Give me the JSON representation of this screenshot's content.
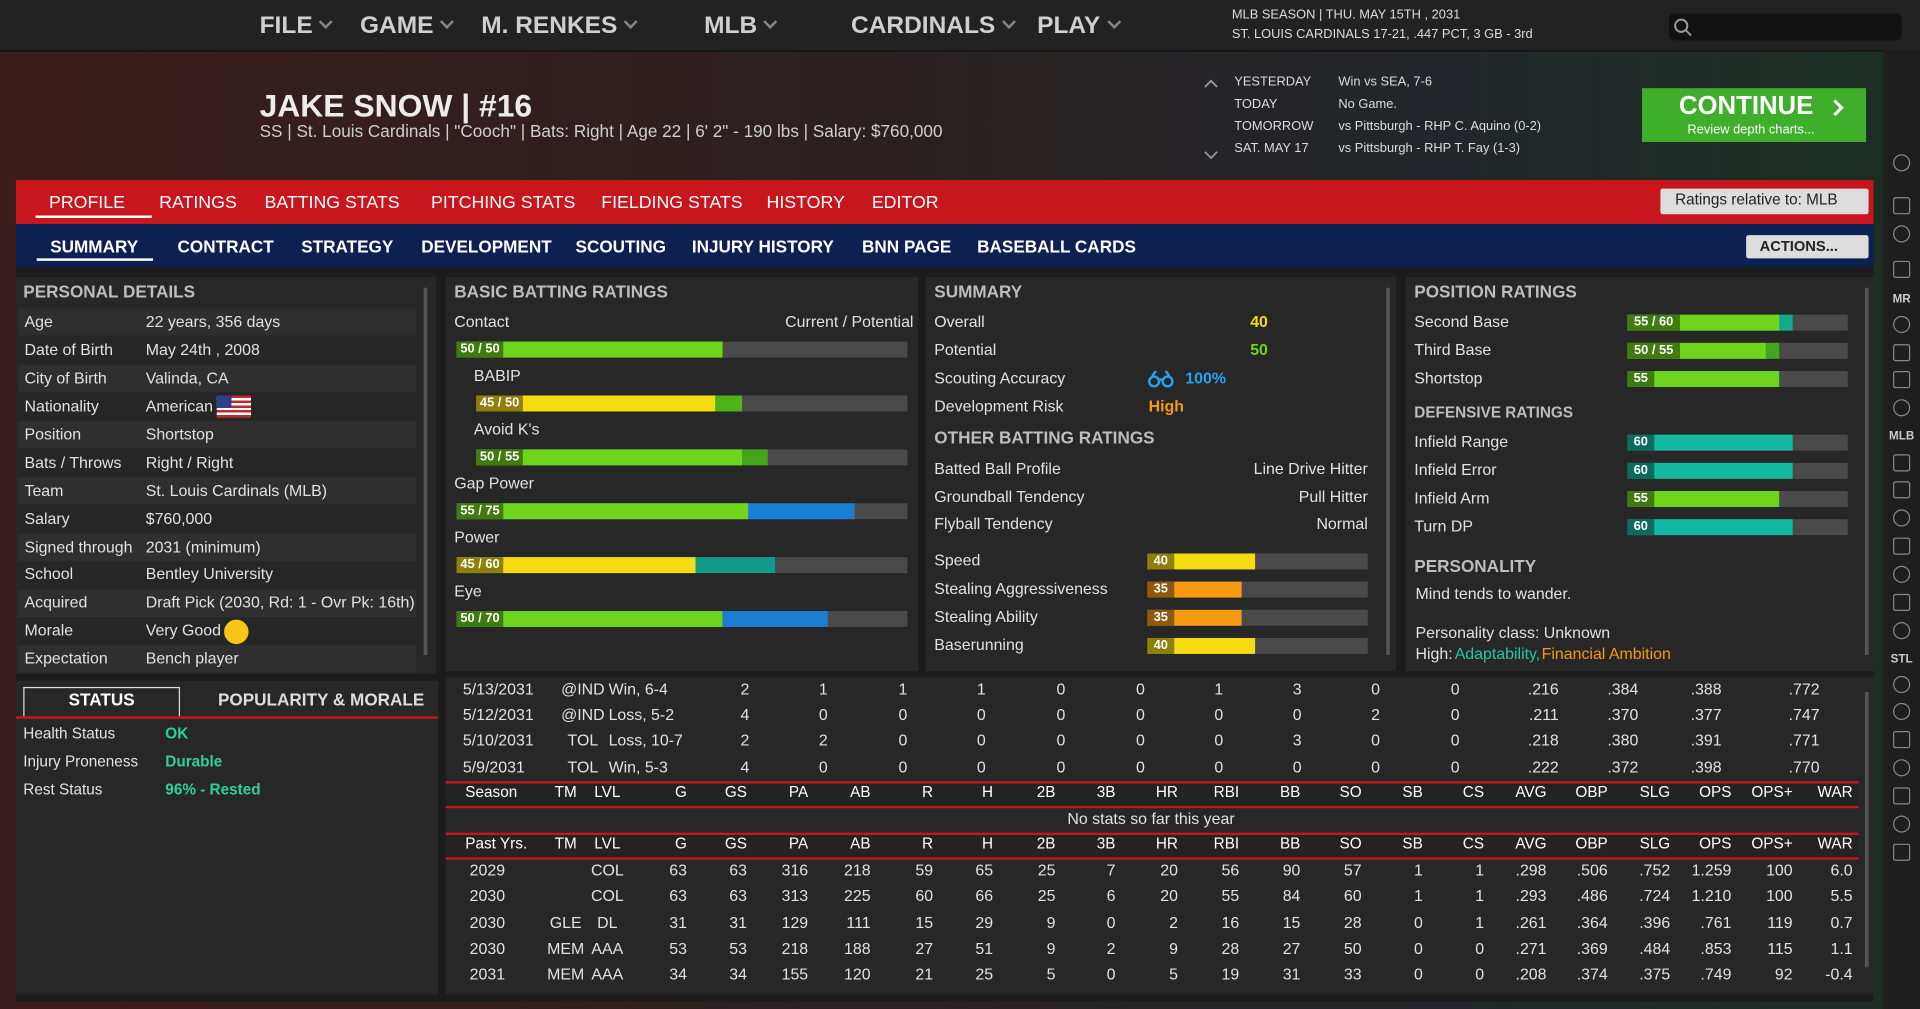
{
  "nav": {
    "menu": [
      "FILE",
      "GAME",
      "M. RENKES",
      "MLB",
      "CARDINALS",
      "PLAY"
    ],
    "season": "MLB SEASON  |  THU. MAY 15TH , 2031",
    "team_record": "ST. LOUIS CARDINALS  17-21, .447 PCT, 3 GB - 3rd"
  },
  "player": {
    "name": "JAKE SNOW  |  #16",
    "info": "SS | St. Louis Cardinals  |  \"Cooch\" | Bats: Right  |  Age 22  |  6' 2\"  - 190 lbs  |  Salary: $760,000"
  },
  "schedule": [
    {
      "day": "YESTERDAY",
      "game": "Win vs SEA, 7-6"
    },
    {
      "day": "TODAY",
      "game": "No Game."
    },
    {
      "day": "TOMORROW",
      "game": "vs Pittsburgh - RHP C. Aquino (0-2)"
    },
    {
      "day": "SAT. MAY 17",
      "game": "vs Pittsburgh - RHP T. Fay (1-3)"
    }
  ],
  "continue_button": {
    "label": "CONTINUE",
    "sub": "Review depth charts..."
  },
  "tabs": [
    "PROFILE",
    "RATINGS",
    "BATTING STATS",
    "PITCHING STATS",
    "FIELDING STATS",
    "HISTORY",
    "EDITOR"
  ],
  "ratings_relative": "Ratings relative to: MLB",
  "subtabs": [
    "SUMMARY",
    "CONTRACT",
    "STRATEGY",
    "DEVELOPMENT",
    "SCOUTING",
    "INJURY HISTORY",
    "BNN PAGE",
    "BASEBALL CARDS"
  ],
  "actions": "ACTIONS...",
  "personal_details": {
    "title": "PERSONAL DETAILS",
    "rows": [
      {
        "label": "Age",
        "value": "22 years, 356 days"
      },
      {
        "label": "Date of Birth",
        "value": "May 24th , 2008"
      },
      {
        "label": "City of Birth",
        "value": "Valinda, CA"
      },
      {
        "label": "Nationality",
        "value": "American"
      },
      {
        "label": "Position",
        "value": "Shortstop"
      },
      {
        "label": "Bats / Throws",
        "value": "Right / Right"
      },
      {
        "label": "Team",
        "value": "St. Louis Cardinals (MLB)"
      },
      {
        "label": "Salary",
        "value": "$760,000"
      },
      {
        "label": "Signed through",
        "value": "2031 (minimum)"
      },
      {
        "label": "School",
        "value": "Bentley University"
      },
      {
        "label": "Acquired",
        "value": "Draft Pick (2030, Rd: 1 - Ovr Pk: 16th)"
      },
      {
        "label": "Morale",
        "value": "Very Good"
      },
      {
        "label": "Expectation",
        "value": "Bench player"
      }
    ]
  },
  "batting_ratings": {
    "title": "BASIC BATTING RATINGS",
    "column_label": "Current / Potential",
    "rows": [
      {
        "name": "Contact",
        "label": "50 / 50",
        "current": 50,
        "potential": 50,
        "indent": false,
        "color": "#6fd41c",
        "potential_color": "#6fd41c"
      },
      {
        "name": "BABIP",
        "label": "45 / 50",
        "current": 45,
        "potential": 50,
        "indent": true,
        "color": "#f5dc12",
        "potential_color": "#4fb41a"
      },
      {
        "name": "Avoid K's",
        "label": "50 / 55",
        "current": 50,
        "potential": 55,
        "indent": true,
        "color": "#6fd41c",
        "potential_color": "#45a51a"
      },
      {
        "name": "Gap Power",
        "label": "55 / 75",
        "current": 55,
        "potential": 75,
        "indent": false,
        "color": "#6fd41c",
        "potential_color": "#1a7fd4"
      },
      {
        "name": "Power",
        "label": "45 / 60",
        "current": 45,
        "potential": 60,
        "indent": false,
        "color": "#f5dc12",
        "potential_color": "#13998a"
      },
      {
        "name": "Eye",
        "label": "50 / 70",
        "current": 50,
        "potential": 70,
        "indent": false,
        "color": "#6fd41c",
        "potential_color": "#1a7fd4"
      }
    ]
  },
  "summary": {
    "title": "SUMMARY",
    "rows": [
      {
        "label": "Overall",
        "value": 40,
        "color": "#f5dc12"
      },
      {
        "label": "Potential",
        "value": 50,
        "color": "#6fd41c"
      },
      {
        "label": "Scouting Accuracy",
        "value": "100%",
        "color": "#2aa1f0"
      },
      {
        "label": "Development Risk",
        "value": "High",
        "color": "#f59a12"
      }
    ],
    "other_title": "OTHER BATTING RATINGS",
    "profile": [
      {
        "label": "Batted Ball Profile",
        "value": "Line Drive Hitter"
      },
      {
        "label": "Groundball Tendency",
        "value": "Pull Hitter"
      },
      {
        "label": "Flyball Tendency",
        "value": "Normal"
      }
    ],
    "bars": [
      {
        "label": "Speed",
        "value": 40,
        "color": "#f5dc12"
      },
      {
        "label": "Stealing Aggressiveness",
        "value": 35,
        "color": "#f59a12"
      },
      {
        "label": "Stealing Ability",
        "value": 35,
        "color": "#f59a12"
      },
      {
        "label": "Baserunning",
        "value": 40,
        "color": "#f5dc12"
      }
    ]
  },
  "position_ratings": {
    "title": "POSITION RATINGS",
    "rows": [
      {
        "name": "Second Base",
        "label": "55 / 60",
        "current": 55,
        "potential": 60,
        "color": "#6fd41c",
        "potential_color": "#13a890"
      },
      {
        "name": "Third Base",
        "label": "50 / 55",
        "current": 50,
        "potential": 55,
        "color": "#6fd41c",
        "potential_color": "#45a51a"
      },
      {
        "name": "Shortstop",
        "label": "55",
        "current": 55,
        "color": "#6fd41c"
      }
    ],
    "defensive_title": "DEFENSIVE RATINGS",
    "defensive": [
      {
        "name": "Infield Range",
        "value": 60,
        "color": "#13b8a0"
      },
      {
        "name": "Infield Error",
        "value": 60,
        "color": "#13b8a0"
      },
      {
        "name": "Infield Arm",
        "value": 55,
        "color": "#6fd41c"
      },
      {
        "name": "Turn DP",
        "value": 60,
        "color": "#13b8a0"
      }
    ],
    "personality_title": "PERSONALITY",
    "personality_desc": "Mind tends to wander.",
    "personality_class": "Personality class: Unknown",
    "high_label": "High:",
    "high_traits": [
      {
        "text": "Adaptability,",
        "color": "#21c9a0"
      },
      {
        "text": "Financial Ambition",
        "color": "#f59a12"
      }
    ]
  },
  "status": {
    "tabs": [
      "STATUS",
      "POPULARITY & MORALE"
    ],
    "rows": [
      {
        "label": "Health Status",
        "value": "OK"
      },
      {
        "label": "Injury Proneness",
        "value": "Durable"
      },
      {
        "label": "Rest Status",
        "value": "96% - Rested"
      }
    ]
  },
  "stats": {
    "game_log": [
      [
        "5/13/2031",
        "@IND",
        "Win, 6-4",
        "2",
        "1",
        "1",
        "1",
        "0",
        "0",
        "1",
        "3",
        "0",
        "0",
        ".216",
        ".384",
        ".388",
        ".772"
      ],
      [
        "5/12/2031",
        "@IND",
        "Loss, 5-2",
        "4",
        "0",
        "0",
        "0",
        "0",
        "0",
        "0",
        "0",
        "2",
        "0",
        ".211",
        ".370",
        ".377",
        ".747"
      ],
      [
        "5/10/2031",
        "TOL",
        "Loss, 10-7",
        "2",
        "2",
        "0",
        "0",
        "0",
        "0",
        "0",
        "3",
        "0",
        "0",
        ".218",
        ".380",
        ".391",
        ".771"
      ],
      [
        "5/9/2031",
        "TOL",
        "Win, 5-3",
        "4",
        "0",
        "0",
        "0",
        "0",
        "0",
        "0",
        "0",
        "0",
        "0",
        ".222",
        ".372",
        ".398",
        ".770"
      ]
    ],
    "season_header": [
      "Season",
      "TM",
      "LVL",
      "G",
      "GS",
      "PA",
      "AB",
      "R",
      "H",
      "2B",
      "3B",
      "HR",
      "RBI",
      "BB",
      "SO",
      "SB",
      "CS",
      "AVG",
      "OBP",
      "SLG",
      "OPS",
      "OPS+",
      "WAR"
    ],
    "no_stats": "No stats so far this year",
    "past_header": [
      "Past Yrs.",
      "TM",
      "LVL",
      "G",
      "GS",
      "PA",
      "AB",
      "R",
      "H",
      "2B",
      "3B",
      "HR",
      "RBI",
      "BB",
      "SO",
      "SB",
      "CS",
      "AVG",
      "OBP",
      "SLG",
      "OPS",
      "OPS+",
      "WAR"
    ],
    "past_rows": [
      [
        "2029",
        null,
        "COL",
        "63",
        "63",
        "316",
        "218",
        "59",
        "65",
        "25",
        "7",
        "20",
        "56",
        "90",
        "57",
        "1",
        "1",
        ".298",
        ".506",
        ".752",
        "1.259",
        "100",
        "6.0"
      ],
      [
        "2030",
        null,
        "COL",
        "63",
        "63",
        "313",
        "225",
        "60",
        "66",
        "25",
        "6",
        "20",
        "55",
        "84",
        "60",
        "1",
        "1",
        ".293",
        ".486",
        ".724",
        "1.210",
        "100",
        "5.5"
      ],
      [
        "2030",
        "GLE",
        "DL",
        "31",
        "31",
        "129",
        "111",
        "15",
        "29",
        "9",
        "0",
        "2",
        "16",
        "15",
        "28",
        "0",
        "1",
        ".261",
        ".364",
        ".396",
        ".761",
        "119",
        "0.7"
      ],
      [
        "2030",
        "MEM",
        "AAA",
        "53",
        "53",
        "218",
        "188",
        "27",
        "51",
        "9",
        "2",
        "9",
        "28",
        "27",
        "50",
        "0",
        "0",
        ".271",
        ".369",
        ".484",
        ".853",
        "115",
        "1.1"
      ],
      [
        "2031",
        "MEM",
        "AAA",
        "34",
        "34",
        "155",
        "120",
        "21",
        "25",
        "5",
        "0",
        "5",
        "19",
        "31",
        "33",
        "0",
        "0",
        ".208",
        ".374",
        ".375",
        ".749",
        "92",
        "-0.4"
      ]
    ]
  },
  "sidebar": [
    "MR",
    "MLB",
    "STL"
  ]
}
